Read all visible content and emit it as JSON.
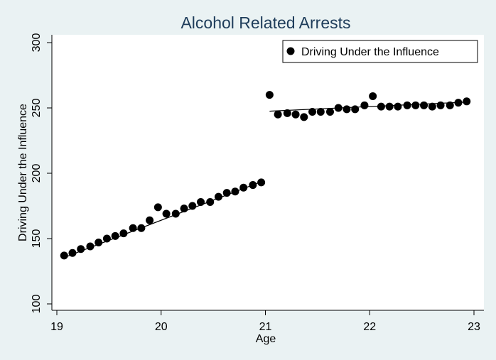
{
  "chart_data": {
    "type": "scatter",
    "title": "Alcohol Related Arrests",
    "xlabel": "Age",
    "ylabel": "Driving Under the Influence",
    "xlim": [
      19,
      23
    ],
    "ylim": [
      100,
      300
    ],
    "xticks": [
      "19",
      "20",
      "21",
      "22",
      "23"
    ],
    "yticks": [
      "100",
      "150",
      "200",
      "250",
      "300"
    ],
    "grid": false,
    "legend_position": "top-right",
    "series": [
      {
        "name": "Driving Under the Influence",
        "type": "scatter",
        "x": [
          19.07,
          19.15,
          19.23,
          19.32,
          19.4,
          19.48,
          19.56,
          19.64,
          19.73,
          19.81,
          19.89,
          19.97,
          20.05,
          20.14,
          20.22,
          20.3,
          20.38,
          20.47,
          20.55,
          20.63,
          20.71,
          20.79,
          20.88,
          20.96,
          21.04,
          21.12,
          21.21,
          21.29,
          21.37,
          21.45,
          21.53,
          21.62,
          21.7,
          21.78,
          21.86,
          21.95,
          22.03,
          22.11,
          22.19,
          22.27,
          22.36,
          22.44,
          22.52,
          22.6,
          22.68,
          22.77,
          22.85,
          22.93
        ],
        "y": [
          137,
          139,
          142,
          144,
          147,
          150,
          152,
          154,
          158,
          158,
          164,
          174,
          169,
          169,
          173,
          175,
          178,
          178,
          182,
          185,
          186,
          189,
          191,
          193,
          260,
          245,
          246,
          245,
          243,
          247,
          247,
          247,
          250,
          249,
          249,
          252,
          259,
          251,
          251,
          251,
          252,
          252,
          252,
          251,
          252,
          252,
          254,
          255
        ]
      }
    ],
    "fit_lines": [
      {
        "segment": "left",
        "x": [
          19.07,
          20.96
        ],
        "y": [
          135.5,
          193.5
        ]
      },
      {
        "segment": "right",
        "x": [
          21.04,
          22.93
        ],
        "y": [
          247.5,
          254.5
        ]
      }
    ],
    "colors": {
      "markers": "#000000",
      "fit_line": "#000000",
      "background": "#eaf2f3",
      "plot_background": "#ffffff",
      "title": "#1e3c5a"
    }
  }
}
